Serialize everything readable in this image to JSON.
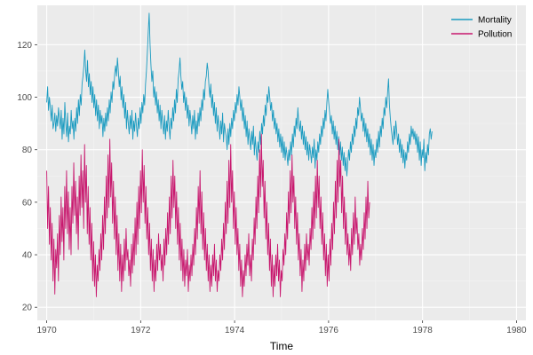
{
  "chart_data": {
    "type": "line",
    "xlabel": "Time",
    "ylabel": "",
    "xlim": [
      1969.8,
      1980.2
    ],
    "ylim": [
      15,
      135
    ],
    "x_ticks": [
      1970,
      1972,
      1974,
      1976,
      1978,
      1980
    ],
    "y_ticks": [
      20,
      40,
      60,
      80,
      100,
      120
    ],
    "x_tick_labels": [
      "1970",
      "1972",
      "1974",
      "1976",
      "1978",
      "1980"
    ],
    "y_tick_labels": [
      "20",
      "40",
      "60",
      "80",
      "100",
      "120"
    ],
    "grid": true,
    "legend_position": "top-right",
    "x_start": 1970,
    "x_step": 0.0192,
    "series": [
      {
        "name": "Mortality",
        "color": "#1b9bc0",
        "values": [
          98,
          104,
          95,
          100,
          96,
          91,
          97,
          88,
          90,
          94,
          87,
          93,
          89,
          96,
          92,
          88,
          95,
          84,
          92,
          86,
          98,
          90,
          85,
          94,
          83,
          89,
          86,
          95,
          88,
          91,
          84,
          92,
          87,
          96,
          90,
          99,
          93,
          101,
          97,
          105,
          108,
          112,
          118,
          110,
          106,
          114,
          104,
          109,
          101,
          106,
          98,
          104,
          96,
          101,
          93,
          99,
          91,
          97,
          88,
          95,
          90,
          93,
          85,
          92,
          87,
          94,
          89,
          96,
          91,
          99,
          94,
          102,
          98,
          106,
          103,
          109,
          112,
          108,
          115,
          110,
          104,
          108,
          99,
          104,
          96,
          101,
          92,
          98,
          88,
          95,
          90,
          86,
          93,
          88,
          95,
          84,
          91,
          87,
          94,
          89,
          85,
          92,
          88,
          96,
          90,
          98,
          94,
          101,
          97,
          105,
          110,
          117,
          125,
          132,
          120,
          112,
          106,
          110,
          100,
          104,
          97,
          102,
          94,
          99,
          91,
          97,
          88,
          95,
          90,
          86,
          93,
          84,
          91,
          87,
          95,
          89,
          84,
          92,
          88,
          96,
          91,
          99,
          94,
          103,
          98,
          107,
          110,
          115,
          108,
          103,
          106,
          98,
          102,
          95,
          100,
          92,
          97,
          89,
          95,
          91,
          86,
          93,
          88,
          95,
          84,
          91,
          86,
          94,
          89,
          96,
          91,
          99,
          95,
          103,
          99,
          106,
          108,
          113,
          110,
          104,
          100,
          105,
          96,
          101,
          93,
          98,
          90,
          96,
          87,
          93,
          89,
          84,
          91,
          86,
          94,
          83,
          90,
          87,
          85,
          80,
          88,
          82,
          90,
          85,
          92,
          88,
          95,
          91,
          98,
          94,
          101,
          97,
          104,
          100,
          95,
          99,
          91,
          96,
          88,
          93,
          85,
          91,
          82,
          88,
          84,
          80,
          87,
          82,
          89,
          78,
          85,
          80,
          76,
          83,
          79,
          87,
          82,
          90,
          86,
          93,
          89,
          97,
          93,
          101,
          98,
          104,
          100,
          95,
          98,
          91,
          95,
          88,
          92,
          86,
          90,
          83,
          88,
          81,
          86,
          79,
          85,
          77,
          83,
          76,
          81,
          78,
          74,
          80,
          76,
          83,
          78,
          86,
          81,
          89,
          85,
          92,
          88,
          96,
          90,
          87,
          91,
          84,
          89,
          82,
          87,
          80,
          85,
          78,
          83,
          76,
          82,
          79,
          75,
          81,
          77,
          84,
          73,
          80,
          76,
          83,
          79,
          86,
          82,
          89,
          85,
          92,
          88,
          95,
          91,
          98,
          103,
          98,
          94,
          90,
          93,
          86,
          91,
          84,
          89,
          82,
          87,
          80,
          85,
          78,
          83,
          76,
          81,
          74,
          79,
          72,
          77,
          70,
          75,
          80,
          76,
          83,
          79,
          86,
          82,
          89,
          85,
          92,
          88,
          96,
          93,
          100,
          96,
          91,
          94,
          87,
          92,
          85,
          90,
          83,
          88,
          81,
          86,
          78,
          84,
          76,
          82,
          74,
          80,
          77,
          84,
          79,
          87,
          81,
          89,
          85,
          92,
          88,
          96,
          93,
          100,
          96,
          102,
          107,
          97,
          92,
          88,
          85,
          82,
          89,
          84,
          91,
          87,
          82,
          86,
          79,
          84,
          77,
          82,
          75,
          80,
          73,
          79,
          76,
          83,
          79,
          86,
          82,
          89,
          85,
          88,
          84,
          87,
          82,
          86,
          79,
          85,
          76,
          83,
          74,
          80,
          77,
          84,
          72,
          79,
          75,
          82,
          78,
          86,
          88,
          84,
          87
        ],
        "x_step": 0.0193
      },
      {
        "name": "Pollution",
        "color": "#c8186e",
        "values": [
          72,
          50,
          66,
          44,
          58,
          38,
          52,
          30,
          46,
          25,
          42,
          35,
          48,
          30,
          55,
          40,
          62,
          45,
          58,
          38,
          66,
          50,
          72,
          48,
          64,
          42,
          58,
          40,
          66,
          52,
          75,
          55,
          68,
          48,
          62,
          42,
          70,
          55,
          78,
          58,
          72,
          50,
          82,
          60,
          74,
          48,
          66,
          44,
          58,
          38,
          52,
          30,
          45,
          28,
          40,
          24,
          36,
          30,
          42,
          34,
          48,
          38,
          55,
          42,
          62,
          48,
          70,
          54,
          78,
          58,
          84,
          62,
          75,
          52,
          68,
          46,
          62,
          40,
          55,
          34,
          48,
          30,
          44,
          26,
          40,
          30,
          46,
          34,
          50,
          38,
          42,
          32,
          38,
          28,
          44,
          33,
          48,
          36,
          54,
          40,
          60,
          44,
          66,
          50,
          72,
          56,
          80,
          60,
          74,
          52,
          66,
          46,
          58,
          40,
          52,
          34,
          46,
          30,
          42,
          26,
          38,
          30,
          44,
          34,
          48,
          38,
          44,
          34,
          40,
          30,
          46,
          36,
          50,
          40,
          56,
          44,
          62,
          48,
          70,
          54,
          76,
          58,
          70,
          50,
          64,
          44,
          58,
          38,
          52,
          34,
          46,
          30,
          42,
          28,
          38,
          32,
          42,
          26,
          36,
          30,
          40,
          32,
          44,
          36,
          50,
          40,
          58,
          46,
          66,
          52,
          72,
          48,
          64,
          42,
          56,
          38,
          50,
          34,
          44,
          30,
          40,
          26,
          36,
          28,
          40,
          32,
          44,
          30,
          38,
          26,
          34,
          30,
          40,
          34,
          46,
          38,
          52,
          42,
          60,
          48,
          68,
          52,
          76,
          58,
          82,
          60,
          72,
          50,
          64,
          44,
          58,
          40,
          50,
          34,
          44,
          28,
          38,
          24,
          34,
          28,
          40,
          32,
          44,
          36,
          48,
          32,
          40,
          30,
          46,
          38,
          54,
          44,
          62,
          50,
          70,
          56,
          80,
          62,
          86,
          66,
          76,
          54,
          68,
          46,
          60,
          40,
          52,
          34,
          46,
          28,
          40,
          24,
          36,
          28,
          40,
          32,
          44,
          30,
          38,
          24,
          34,
          30,
          42,
          36,
          48,
          40,
          56,
          46,
          64,
          52,
          72,
          56,
          78,
          60,
          70,
          50,
          62,
          44,
          56,
          38,
          48,
          32,
          42,
          26,
          38,
          30,
          44,
          34,
          48,
          38,
          44,
          36,
          50,
          42,
          58,
          46,
          64,
          50,
          70,
          54,
          76,
          58,
          70,
          50,
          62,
          44,
          56,
          38,
          48,
          32,
          44,
          28,
          40,
          30,
          46,
          36,
          52,
          42,
          60,
          48,
          68,
          54,
          76,
          60,
          84,
          66,
          76,
          56,
          70,
          50,
          62,
          44,
          56,
          40,
          48,
          36,
          44,
          34,
          50,
          40,
          56,
          44,
          62,
          48,
          54,
          42,
          48,
          36,
          44,
          38,
          50,
          42,
          56,
          46,
          62,
          50,
          68,
          54,
          60
        ]
      }
    ]
  }
}
